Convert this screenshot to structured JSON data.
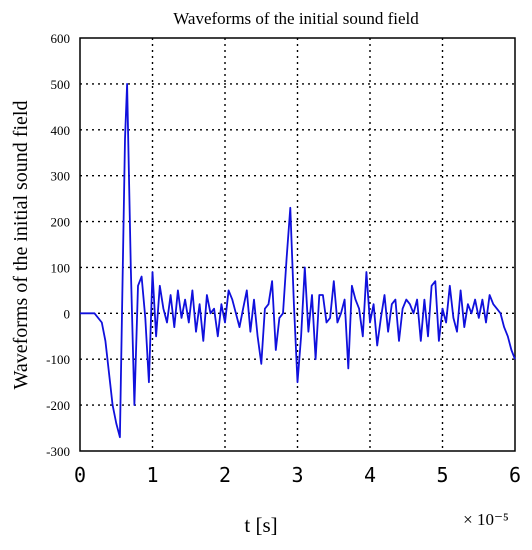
{
  "chart_data": {
    "type": "line",
    "title": "Waveforms of the initial sound field",
    "xlabel": "t [s]",
    "ylabel": "Waveforms of the initial sound field",
    "x_multiplier": "× 10⁻⁵",
    "xlim": [
      0,
      6
    ],
    "ylim": [
      -300,
      600
    ],
    "x_ticks": [
      0,
      1,
      2,
      3,
      4,
      5,
      6
    ],
    "x_tick_labels": [
      "0",
      "1",
      "2",
      "3",
      "4",
      "5",
      "6"
    ],
    "y_ticks": [
      600,
      500,
      400,
      300,
      200,
      100,
      0,
      -100,
      -200,
      -300
    ],
    "y_tick_labels": [
      "600",
      "500",
      "400",
      "300",
      "200",
      "100",
      "0",
      "-100",
      "-200",
      "-300"
    ],
    "grid": true,
    "line_color": "#1010dd",
    "series": [
      {
        "x": [
          0,
          0.2,
          0.3,
          0.35,
          0.4,
          0.45,
          0.5,
          0.55,
          0.58,
          0.62,
          0.65,
          0.7,
          0.75,
          0.8,
          0.85,
          0.9,
          0.95,
          1.0,
          1.05,
          1.1,
          1.15,
          1.2,
          1.25,
          1.3,
          1.35,
          1.4,
          1.45,
          1.5,
          1.55,
          1.6,
          1.65,
          1.7,
          1.75,
          1.8,
          1.85,
          1.9,
          1.95,
          2.0,
          2.05,
          2.1,
          2.15,
          2.2,
          2.25,
          2.3,
          2.35,
          2.4,
          2.45,
          2.5,
          2.55,
          2.6,
          2.65,
          2.7,
          2.75,
          2.8,
          2.85,
          2.9,
          2.95,
          3.0,
          3.05,
          3.1,
          3.15,
          3.2,
          3.25,
          3.3,
          3.35,
          3.4,
          3.45,
          3.5,
          3.55,
          3.6,
          3.65,
          3.7,
          3.75,
          3.8,
          3.85,
          3.9,
          3.95,
          4.0,
          4.05,
          4.1,
          4.15,
          4.2,
          4.25,
          4.3,
          4.35,
          4.4,
          4.45,
          4.5,
          4.55,
          4.6,
          4.65,
          4.7,
          4.75,
          4.8,
          4.85,
          4.9,
          4.95,
          5.0,
          5.05,
          5.1,
          5.15,
          5.2,
          5.25,
          5.3,
          5.35,
          5.4,
          5.45,
          5.5,
          5.55,
          5.6,
          5.65,
          5.7,
          5.75,
          5.8,
          5.85,
          5.9,
          5.95,
          6.0
        ],
        "y": [
          0,
          0,
          -20,
          -60,
          -130,
          -200,
          -240,
          -270,
          0,
          380,
          500,
          100,
          -200,
          60,
          80,
          -10,
          -150,
          90,
          -50,
          60,
          10,
          -20,
          40,
          -30,
          50,
          -10,
          30,
          -20,
          50,
          -40,
          20,
          -60,
          40,
          0,
          10,
          -50,
          20,
          -20,
          50,
          30,
          0,
          -30,
          10,
          50,
          -40,
          30,
          -50,
          -110,
          10,
          20,
          70,
          -80,
          -10,
          0,
          120,
          230,
          20,
          -150,
          -50,
          100,
          -40,
          40,
          -100,
          40,
          40,
          -20,
          -10,
          70,
          -20,
          0,
          30,
          -120,
          60,
          30,
          10,
          -50,
          90,
          -20,
          20,
          -70,
          -10,
          40,
          -40,
          20,
          30,
          -60,
          10,
          30,
          20,
          0,
          30,
          -60,
          30,
          -50,
          60,
          70,
          -60,
          10,
          -20,
          60,
          -10,
          -40,
          50,
          -30,
          20,
          0,
          30,
          -10,
          30,
          -20,
          40,
          20,
          10,
          0,
          -30,
          -50,
          -80,
          -100
        ]
      }
    ]
  }
}
